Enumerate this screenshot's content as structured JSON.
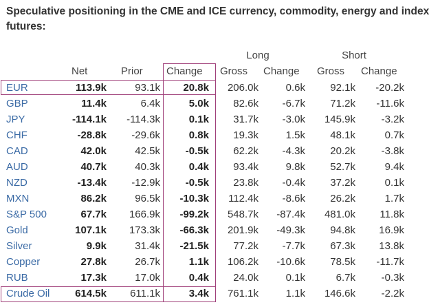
{
  "title": "Speculative positioning in the CME and ICE currency, commodity, energy and index futures:",
  "groups": {
    "long": "Long",
    "short": "Short"
  },
  "columns": [
    "Net",
    "Prior",
    "Change",
    "Gross",
    "Change",
    "Gross",
    "Change"
  ],
  "rows": [
    {
      "label": "EUR",
      "net": "113.9k",
      "prior": "93.1k",
      "change": "20.8k",
      "long_gross": "206.0k",
      "long_change": "0.6k",
      "short_gross": "92.1k",
      "short_change": "-20.2k"
    },
    {
      "label": "GBP",
      "net": "11.4k",
      "prior": "6.4k",
      "change": "5.0k",
      "long_gross": "82.6k",
      "long_change": "-6.7k",
      "short_gross": "71.2k",
      "short_change": "-11.6k"
    },
    {
      "label": "JPY",
      "net": "-114.1k",
      "prior": "-114.3k",
      "change": "0.1k",
      "long_gross": "31.7k",
      "long_change": "-3.0k",
      "short_gross": "145.9k",
      "short_change": "-3.2k"
    },
    {
      "label": "CHF",
      "net": "-28.8k",
      "prior": "-29.6k",
      "change": "0.8k",
      "long_gross": "19.3k",
      "long_change": "1.5k",
      "short_gross": "48.1k",
      "short_change": "0.7k"
    },
    {
      "label": "CAD",
      "net": "42.0k",
      "prior": "42.5k",
      "change": "-0.5k",
      "long_gross": "62.2k",
      "long_change": "-4.3k",
      "short_gross": "20.2k",
      "short_change": "-3.8k"
    },
    {
      "label": "AUD",
      "net": "40.7k",
      "prior": "40.3k",
      "change": "0.4k",
      "long_gross": "93.4k",
      "long_change": "9.8k",
      "short_gross": "52.7k",
      "short_change": "9.4k"
    },
    {
      "label": "NZD",
      "net": "-13.4k",
      "prior": "-12.9k",
      "change": "-0.5k",
      "long_gross": "23.8k",
      "long_change": "-0.4k",
      "short_gross": "37.2k",
      "short_change": "0.1k"
    },
    {
      "label": "MXN",
      "net": "86.2k",
      "prior": "96.5k",
      "change": "-10.3k",
      "long_gross": "112.4k",
      "long_change": "-8.6k",
      "short_gross": "26.2k",
      "short_change": "1.7k"
    },
    {
      "label": "S&P 500",
      "net": "67.7k",
      "prior": "166.9k",
      "change": "-99.2k",
      "long_gross": "548.7k",
      "long_change": "-87.4k",
      "short_gross": "481.0k",
      "short_change": "11.8k"
    },
    {
      "label": "Gold",
      "net": "107.1k",
      "prior": "173.3k",
      "change": "-66.3k",
      "long_gross": "201.9k",
      "long_change": "-49.3k",
      "short_gross": "94.8k",
      "short_change": "16.9k"
    },
    {
      "label": "Silver",
      "net": "9.9k",
      "prior": "31.4k",
      "change": "-21.5k",
      "long_gross": "77.2k",
      "long_change": "-7.7k",
      "short_gross": "67.3k",
      "short_change": "13.8k"
    },
    {
      "label": "Copper",
      "net": "27.8k",
      "prior": "26.7k",
      "change": "1.1k",
      "long_gross": "106.2k",
      "long_change": "-10.6k",
      "short_gross": "78.5k",
      "short_change": "-11.7k"
    },
    {
      "label": "RUB",
      "net": "17.3k",
      "prior": "17.0k",
      "change": "0.4k",
      "long_gross": "24.0k",
      "long_change": "0.1k",
      "short_gross": "6.7k",
      "short_change": "-0.3k"
    },
    {
      "label": "Crude Oil",
      "net": "614.5k",
      "prior": "611.1k",
      "change": "3.4k",
      "long_gross": "761.1k",
      "long_change": "1.1k",
      "short_gross": "146.6k",
      "short_change": "-2.2k"
    }
  ],
  "highlight_color": "#a0407a"
}
